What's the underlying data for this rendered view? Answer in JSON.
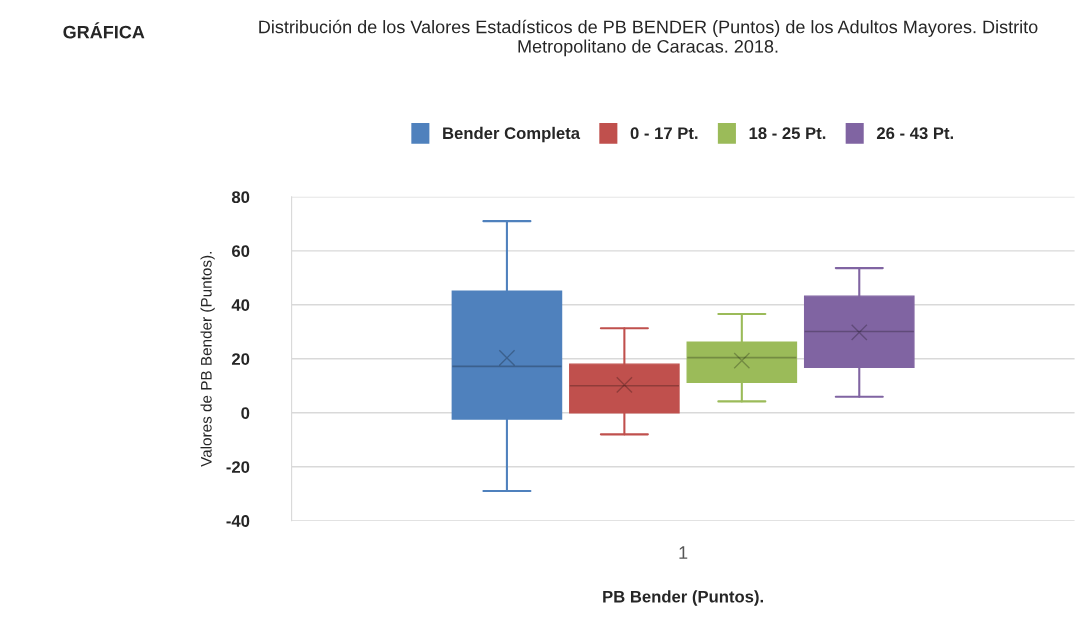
{
  "chart_data": {
    "type": "box",
    "title": "Distribución de los Valores Estadísticos de PB BENDER (Puntos) de los Adultos Mayores. Distrito Metropolitano de Caracas. 2018.",
    "annotations": [
      "GRÁFICA"
    ],
    "xlabel": "PB Bender (Puntos).",
    "ylabel": "Valores de PB Bender (Puntos).",
    "categories": [
      "1"
    ],
    "series": [
      {
        "name": "Bender Completa",
        "color": "#4f81bd",
        "boxes": [
          {
            "low": -29,
            "q1": -2.3,
            "median": 17.2,
            "q3": 45,
            "high": 71,
            "mean": 20.3
          }
        ]
      },
      {
        "name": "0 - 17 Pt.",
        "color": "#c0504d",
        "boxes": [
          {
            "low": -8,
            "q1": 0,
            "median": 10,
            "q3": 18,
            "high": 31.3,
            "mean": 10.3
          }
        ]
      },
      {
        "name": "18 - 25 Pt.",
        "color": "#9bbb59",
        "boxes": [
          {
            "low": 4.2,
            "q1": 11.3,
            "median": 20.4,
            "q3": 26.1,
            "high": 36.6,
            "mean": 19.3
          }
        ]
      },
      {
        "name": "26 - 43 Pt.",
        "color": "#8064a2",
        "boxes": [
          {
            "low": 5.9,
            "q1": 16.8,
            "median": 30.1,
            "q3": 43.2,
            "high": 53.6,
            "mean": 29.8
          }
        ]
      }
    ],
    "ylim": [
      -40,
      80
    ],
    "yticks": [
      -40,
      -20,
      0,
      20,
      40,
      60,
      80
    ],
    "grid": "y",
    "legend": "top"
  }
}
